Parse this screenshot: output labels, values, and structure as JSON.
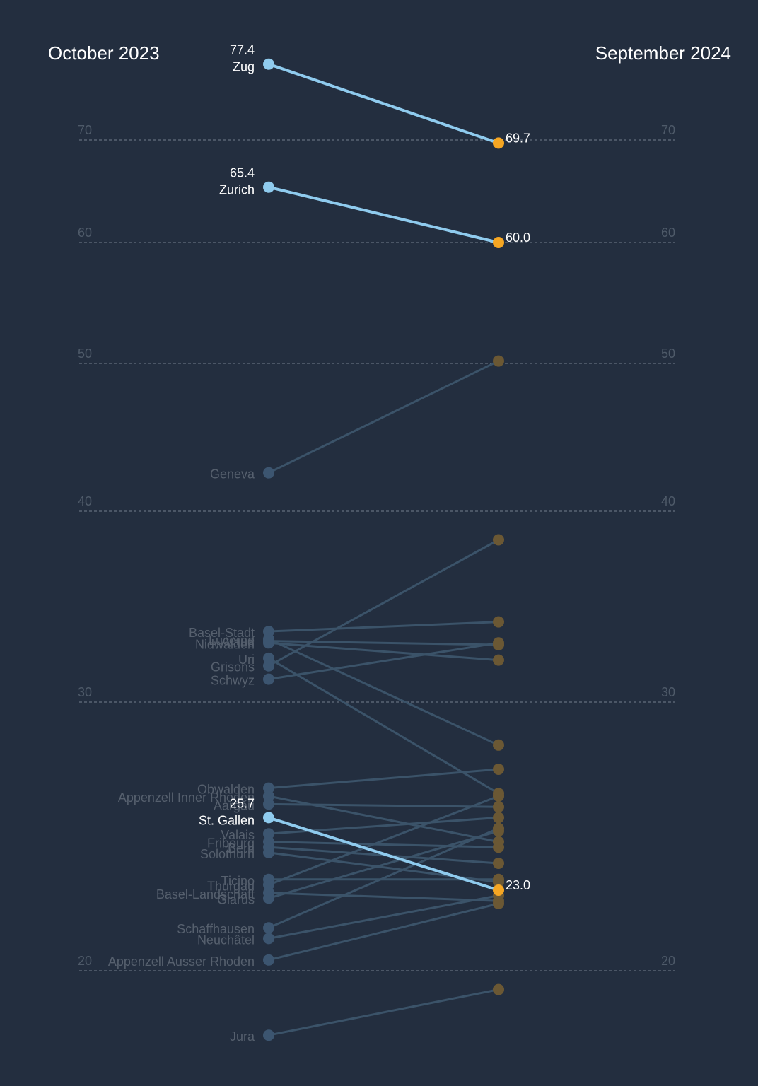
{
  "chart_data": {
    "type": "line",
    "subtype": "slope",
    "x": [
      "October 2023",
      "September 2024"
    ],
    "left_header": "October 2023",
    "right_header": "September 2024",
    "y_ticks": [
      20,
      30,
      40,
      50,
      60,
      70
    ],
    "ylim": [
      17.5,
      80
    ],
    "grid": true,
    "colors": {
      "background": "#232e3f",
      "highlight_line": "#8fcbee",
      "highlight_start": "#8fcbee",
      "highlight_end": "#f5a623",
      "dim_line": "#3b5369",
      "dim_start": "#3c5570",
      "dim_end": "#6b5834",
      "grid": "#8e98a6",
      "tick_text": "#4e5a69",
      "dim_text": "#56606e",
      "hl_text": "#ffffff"
    },
    "series": [
      {
        "name": "Zug",
        "values": [
          77.4,
          69.7
        ],
        "highlight": true,
        "start_label": "77.4",
        "end_label": "69.7"
      },
      {
        "name": "Zurich",
        "values": [
          65.4,
          60.0
        ],
        "highlight": true,
        "start_label": "65.4",
        "end_label": "60.0"
      },
      {
        "name": "St. Gallen",
        "values": [
          25.7,
          23.0
        ],
        "highlight": true,
        "start_label": "25.7",
        "end_label": "23.0"
      },
      {
        "name": "Geneva",
        "values": [
          42.6,
          50.2
        ],
        "highlight": false
      },
      {
        "name": "Basel-Stadt",
        "values": [
          33.7,
          34.2
        ],
        "highlight": false
      },
      {
        "name": "Lucerne",
        "values": [
          33.3,
          28.4
        ],
        "highlight": false
      },
      {
        "name": "Vaud",
        "values": [
          33.2,
          33.0
        ],
        "highlight": false
      },
      {
        "name": "Nidwalden",
        "values": [
          33.1,
          32.2
        ],
        "highlight": false
      },
      {
        "name": "Uri",
        "values": [
          32.3,
          26.6
        ],
        "highlight": false
      },
      {
        "name": "Grisons",
        "values": [
          31.9,
          38.5
        ],
        "highlight": false
      },
      {
        "name": "Schwyz",
        "values": [
          31.2,
          33.1
        ],
        "highlight": false
      },
      {
        "name": "Obwalden",
        "values": [
          26.8,
          27.5
        ],
        "highlight": false
      },
      {
        "name": "Appenzell Inner Rhoden",
        "values": [
          26.5,
          24.8
        ],
        "highlight": false
      },
      {
        "name": "Aargau",
        "values": [
          26.2,
          26.1
        ],
        "highlight": false
      },
      {
        "name": "Valais",
        "values": [
          25.1,
          25.7
        ],
        "highlight": false
      },
      {
        "name": "Fribourg",
        "values": [
          24.8,
          24.6
        ],
        "highlight": false
      },
      {
        "name": "Bern",
        "values": [
          24.6,
          24.0
        ],
        "highlight": false
      },
      {
        "name": "Solothurn",
        "values": [
          24.4,
          23.3
        ],
        "highlight": false
      },
      {
        "name": "Ticino",
        "values": [
          23.4,
          23.4
        ],
        "highlight": false
      },
      {
        "name": "Thurgau",
        "values": [
          23.2,
          26.5
        ],
        "highlight": false
      },
      {
        "name": "Basel-Landschaft",
        "values": [
          22.9,
          22.6
        ],
        "highlight": false
      },
      {
        "name": "Glarus",
        "values": [
          22.7,
          25.2
        ],
        "highlight": false
      },
      {
        "name": "Schaffhausen",
        "values": [
          21.6,
          25.3
        ],
        "highlight": false
      },
      {
        "name": "Neuchâtel",
        "values": [
          21.2,
          22.8
        ],
        "highlight": false
      },
      {
        "name": "Appenzell Ausser Rhoden",
        "values": [
          20.4,
          22.5
        ],
        "highlight": false
      },
      {
        "name": "Jura",
        "values": [
          17.6,
          19.3
        ],
        "highlight": false
      }
    ]
  }
}
